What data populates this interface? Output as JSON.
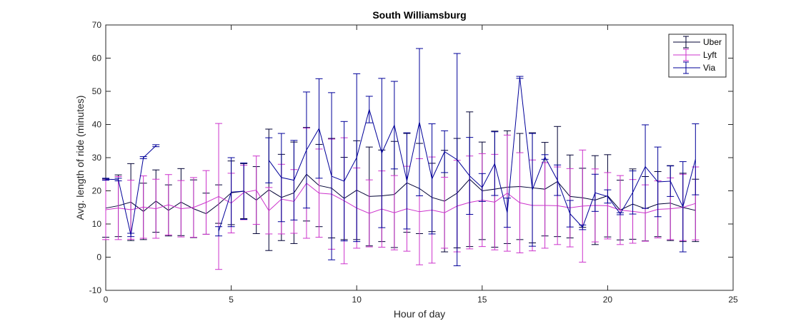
{
  "chart_data": {
    "type": "line",
    "title": "South Williamsburg",
    "xlabel": "Hour of day",
    "ylabel": "Avg. length of ride (minutes)",
    "xlim": [
      0,
      25
    ],
    "ylim": [
      -10,
      70
    ],
    "xticks": [
      0,
      5,
      10,
      15,
      20,
      25
    ],
    "yticks": [
      -10,
      0,
      10,
      20,
      30,
      40,
      50,
      60,
      70
    ],
    "grid": false,
    "legend_position": "top-right",
    "error_bars": true,
    "x": [
      0,
      0.5,
      1,
      1.5,
      2,
      2.5,
      3,
      3.5,
      4,
      4.5,
      5,
      5.5,
      6,
      6.5,
      7,
      7.5,
      8,
      8.5,
      9,
      9.5,
      10,
      10.5,
      11,
      11.5,
      12,
      12.5,
      13,
      13.5,
      14,
      14.5,
      15,
      15.5,
      16,
      16.5,
      17,
      17.5,
      18,
      18.5,
      19,
      19.5,
      20,
      20.5,
      21,
      21.5,
      22,
      22.5,
      23,
      23.5
    ],
    "series": [
      {
        "name": "Uber",
        "color": "#000033",
        "values": [
          14.8,
          15.5,
          16.6,
          13.8,
          16.9,
          14.1,
          16.6,
          14.6,
          13.1,
          16.0,
          19.4,
          19.9,
          17.2,
          20.3,
          18.0,
          19.4,
          25.0,
          21.6,
          20.8,
          17.7,
          20.2,
          18.3,
          18.5,
          18.9,
          22.4,
          20.7,
          18.0,
          16.9,
          19.3,
          23.5,
          20.0,
          20.5,
          21.1,
          21.3,
          20.9,
          20.5,
          22.8,
          18.3,
          17.9,
          17.2,
          18.5,
          14.2,
          16.0,
          14.6,
          16.0,
          16.3,
          15.0,
          14.1
        ],
        "errors": [
          8.8,
          9.3,
          11.6,
          8.5,
          9.4,
          7.7,
          10.1,
          8.7,
          6.2,
          5.8,
          9.6,
          8.3,
          10.1,
          18.3,
          13.0,
          15.3,
          14.1,
          12.4,
          15.0,
          12.4,
          14.9,
          14.9,
          13.8,
          16.0,
          14.9,
          13.6,
          10.3,
          15.3,
          16.5,
          20.3,
          14.7,
          17.5,
          17.0,
          16.0,
          16.6,
          14.1,
          16.6,
          12.5,
          8.9,
          13.4,
          12.4,
          9.0,
          10.6,
          9.7,
          9.8,
          11.3,
          10.3,
          9.4
        ]
      },
      {
        "name": "Lyft",
        "color": "#cc33cc",
        "values": [
          14.3,
          14.8,
          14.3,
          15.1,
          14.6,
          15.8,
          14.6,
          15.0,
          16.5,
          18.3,
          16.3,
          19.5,
          20.2,
          14.0,
          17.5,
          16.8,
          22.3,
          19.3,
          19.0,
          17.0,
          14.8,
          13.2,
          14.5,
          13.4,
          14.6,
          13.7,
          14.2,
          13.4,
          15.4,
          16.5,
          17.2,
          16.6,
          19.3,
          16.4,
          15.6,
          15.6,
          15.5,
          14.9,
          15.4,
          15.6,
          15.5,
          14.2,
          13.8,
          13.3,
          14.4,
          14.6,
          15.0,
          16.2
        ],
        "errors": [
          9.0,
          9.5,
          8.9,
          9.4,
          8.9,
          9.1,
          8.5,
          9.0,
          9.6,
          22.0,
          9.0,
          8.2,
          10.3,
          7.0,
          10.5,
          9.6,
          16.6,
          13.3,
          16.6,
          19.0,
          12.1,
          10.1,
          11.5,
          11.2,
          12.8,
          16.0,
          16.0,
          10.7,
          13.8,
          14.0,
          14.0,
          14.4,
          17.5,
          15.1,
          13.7,
          12.9,
          11.7,
          11.8,
          16.9,
          11.0,
          10.0,
          10.4,
          9.6,
          8.5,
          8.6,
          9.3,
          10.0,
          11.0
        ]
      },
      {
        "name": "Via",
        "color": "#000099",
        "values": [
          23.5,
          23.4,
          6.7,
          30.0,
          33.6,
          null,
          null,
          null,
          null,
          7.8,
          19.6,
          19.9,
          null,
          29.2,
          24.0,
          23.2,
          32.3,
          38.8,
          24.4,
          22.9,
          30.0,
          44.5,
          31.4,
          39.8,
          23.0,
          40.7,
          23.6,
          31.8,
          29.4,
          24.5,
          21.0,
          28.2,
          13.4,
          54.2,
          20.3,
          30.2,
          23.2,
          13.1,
          9.0,
          19.4,
          18.3,
          13.1,
          19.5,
          27.3,
          22.7,
          22.9,
          15.2,
          29.5
        ],
        "errors": [
          0.3,
          0.4,
          0.5,
          0.3,
          0.3,
          null,
          null,
          null,
          null,
          1.4,
          10.4,
          8.5,
          null,
          6.8,
          13.3,
          12.0,
          17.5,
          15.0,
          25.2,
          18.0,
          25.3,
          4.0,
          22.5,
          13.2,
          14.5,
          22.2,
          16.6,
          6.3,
          32.0,
          11.6,
          4.2,
          9.6,
          4.4,
          0.3,
          17.0,
          0.7,
          4.6,
          4.0,
          0.7,
          5.6,
          2.0,
          0.3,
          6.5,
          12.6,
          10.5,
          4.6,
          13.6,
          10.7
        ]
      }
    ]
  }
}
